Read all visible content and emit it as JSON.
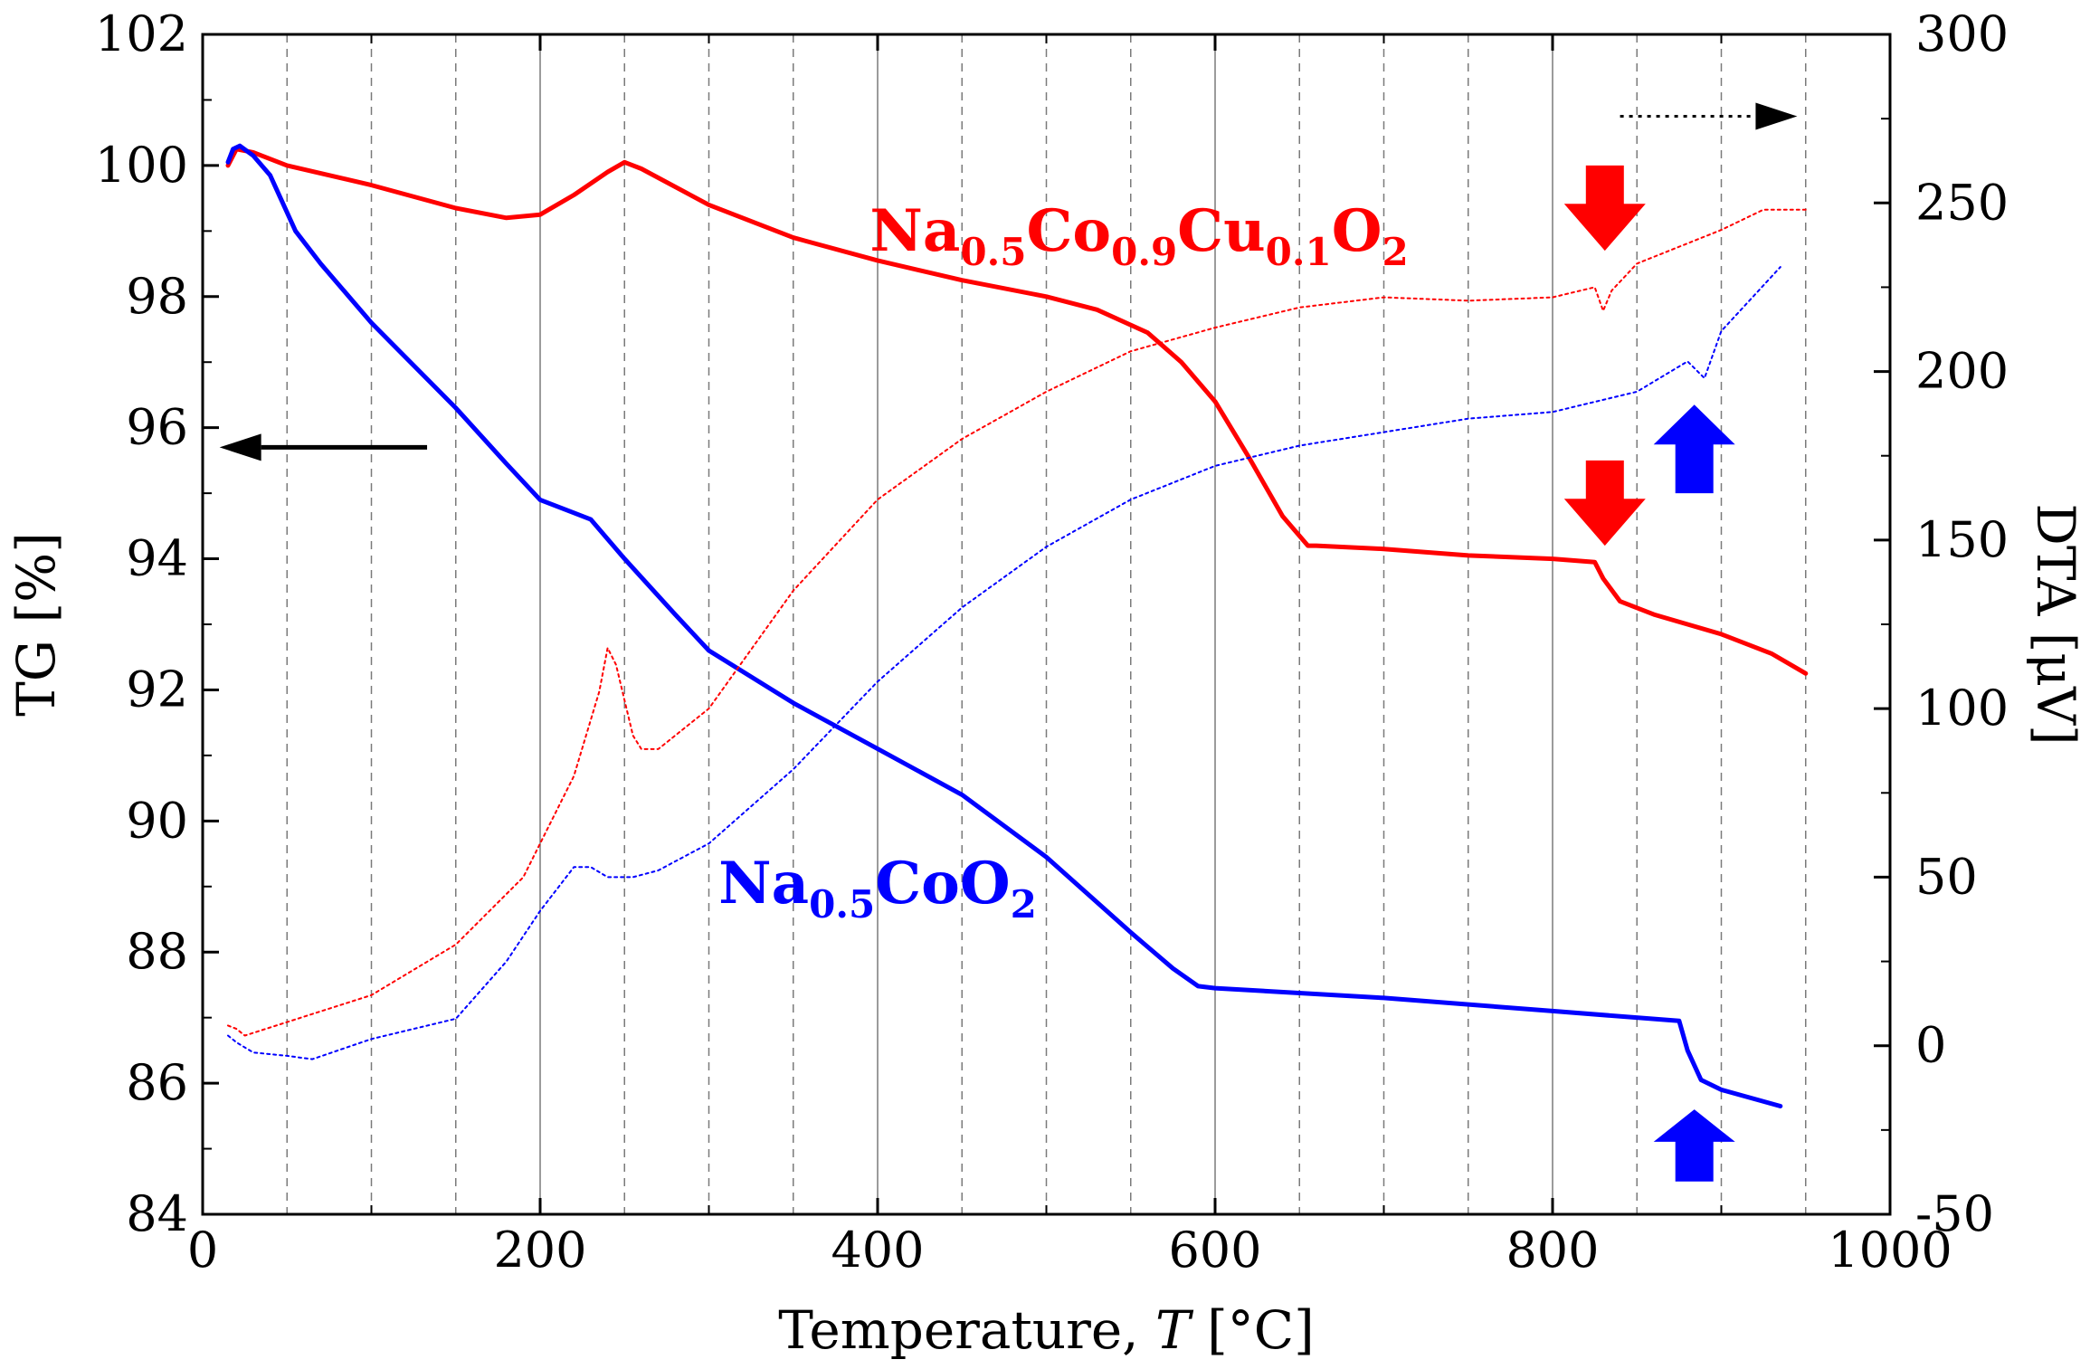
{
  "chart_data": {
    "type": "line",
    "x_axis": {
      "label_prefix": "Temperature, ",
      "label_var": "T",
      "label_unit": " [°C]",
      "range": [
        0,
        1000
      ],
      "ticks": [
        "0",
        "200",
        "400",
        "600",
        "800",
        "1000"
      ],
      "tick_values": [
        0,
        200,
        400,
        600,
        800,
        1000
      ]
    },
    "y_left": {
      "label": "TG [%]",
      "range": [
        84,
        102
      ],
      "ticks": [
        "84",
        "86",
        "88",
        "90",
        "92",
        "94",
        "96",
        "98",
        "100",
        "102"
      ],
      "tick_values": [
        84,
        86,
        88,
        90,
        92,
        94,
        96,
        98,
        100,
        102
      ]
    },
    "y_right": {
      "label": "DTA [μV]",
      "range": [
        -50,
        300
      ],
      "ticks": [
        "-50",
        "0",
        "50",
        "100",
        "150",
        "200",
        "250",
        "300"
      ],
      "tick_values": [
        -50,
        0,
        50,
        100,
        150,
        200,
        250,
        300
      ]
    },
    "grid": {
      "solid_x": [
        200,
        400,
        600,
        800
      ],
      "dashed_x": [
        50,
        100,
        150,
        250,
        300,
        350,
        450,
        500,
        550,
        650,
        700,
        750,
        850,
        900,
        950
      ]
    },
    "series": [
      {
        "name": "Na0.5Co0.9Cu0.1O2 TG",
        "axis": "left",
        "style": "solid",
        "color": "#ff0000",
        "x": [
          15,
          20,
          30,
          50,
          100,
          150,
          180,
          200,
          220,
          240,
          250,
          260,
          300,
          350,
          400,
          450,
          500,
          530,
          560,
          580,
          600,
          620,
          640,
          655,
          660,
          700,
          750,
          800,
          825,
          830,
          840,
          860,
          900,
          930,
          950
        ],
        "y": [
          100.0,
          100.25,
          100.2,
          100.0,
          99.7,
          99.35,
          99.2,
          99.25,
          99.55,
          99.9,
          100.05,
          99.95,
          99.4,
          98.9,
          98.55,
          98.25,
          98.0,
          97.8,
          97.45,
          97.0,
          96.4,
          95.55,
          94.65,
          94.2,
          94.2,
          94.15,
          94.05,
          94.0,
          93.95,
          93.7,
          93.35,
          93.15,
          92.85,
          92.55,
          92.25
        ]
      },
      {
        "name": "Na0.5CoO2 TG",
        "axis": "left",
        "style": "solid",
        "color": "#0000ff",
        "x": [
          15,
          18,
          22,
          30,
          40,
          55,
          70,
          100,
          150,
          180,
          200,
          220,
          230,
          250,
          280,
          300,
          350,
          400,
          450,
          500,
          550,
          575,
          590,
          600,
          700,
          800,
          875,
          880,
          888,
          900,
          935
        ],
        "y": [
          100.05,
          100.25,
          100.3,
          100.15,
          99.85,
          99.0,
          98.5,
          97.6,
          96.3,
          95.45,
          94.9,
          94.7,
          94.6,
          94.0,
          93.15,
          92.6,
          91.8,
          91.1,
          90.4,
          89.45,
          88.3,
          87.75,
          87.48,
          87.45,
          87.3,
          87.1,
          86.95,
          86.5,
          86.05,
          85.9,
          85.65
        ]
      },
      {
        "name": "Na0.5Co0.9Cu0.1O2 DTA",
        "axis": "right",
        "style": "dotted",
        "color": "#ff0000",
        "x": [
          15,
          20,
          25,
          50,
          100,
          150,
          190,
          200,
          220,
          235,
          240,
          245,
          255,
          260,
          270,
          300,
          350,
          400,
          450,
          500,
          550,
          600,
          650,
          700,
          750,
          800,
          825,
          830,
          835,
          850,
          900,
          925,
          950
        ],
        "y": [
          6,
          5,
          3,
          7,
          15,
          30,
          50,
          60,
          80,
          105,
          118,
          113,
          92,
          88,
          88,
          100,
          135,
          162,
          180,
          194,
          206,
          213,
          219,
          222,
          221,
          222,
          225,
          218,
          224,
          232,
          242,
          248,
          248
        ]
      },
      {
        "name": "Na0.5CoO2 DTA",
        "axis": "right",
        "style": "dotted",
        "color": "#0000ff",
        "x": [
          15,
          20,
          30,
          50,
          65,
          100,
          150,
          180,
          200,
          220,
          230,
          240,
          255,
          270,
          300,
          350,
          400,
          450,
          500,
          550,
          600,
          650,
          700,
          750,
          800,
          850,
          870,
          880,
          890,
          900,
          935
        ],
        "y": [
          3,
          1,
          -2,
          -3,
          -4,
          2,
          8,
          25,
          40,
          53,
          53,
          50,
          50,
          52,
          60,
          82,
          108,
          130,
          148,
          162,
          172,
          178,
          182,
          186,
          188,
          194,
          200,
          203,
          198,
          212,
          231
        ]
      }
    ],
    "annotations": {
      "label_cu": {
        "text": [
          {
            "t": "Na"
          },
          {
            "t": "0.5",
            "sub": true
          },
          {
            "t": "Co"
          },
          {
            "t": "0.9",
            "sub": true
          },
          {
            "t": "Cu"
          },
          {
            "t": "0.1",
            "sub": true
          },
          {
            "t": "O"
          },
          {
            "t": "2",
            "sub": true
          }
        ],
        "color": "#ff0000",
        "x": 555,
        "y": 98.7
      },
      "label_co": {
        "text": [
          {
            "t": "Na"
          },
          {
            "t": "0.5",
            "sub": true
          },
          {
            "t": "CoO"
          },
          {
            "t": "2",
            "sub": true
          }
        ],
        "color": "#0000ff",
        "x": 400,
        "y": 88.75
      },
      "arrows": [
        {
          "kind": "horizontal",
          "direction": "left",
          "style": "solid",
          "color": "#000000",
          "x_from": 133,
          "x_to": 10,
          "y_axis": "left",
          "y": 95.7
        },
        {
          "kind": "horizontal",
          "direction": "right",
          "style": "dotted",
          "color": "#000000",
          "x_from": 840,
          "x_to": 945,
          "y_axis": "left",
          "y": 100.75
        },
        {
          "kind": "block",
          "direction": "down",
          "color": "#ff0000",
          "x": 831,
          "y_axis": "left",
          "y_top": 100.0,
          "y_bottom": 98.7
        },
        {
          "kind": "block",
          "direction": "down",
          "color": "#ff0000",
          "x": 831,
          "y_axis": "left",
          "y_top": 95.5,
          "y_bottom": 94.2
        },
        {
          "kind": "block",
          "direction": "up",
          "color": "#0000ff",
          "x": 884,
          "y_axis": "left",
          "y_top": 96.35,
          "y_bottom": 95.0
        },
        {
          "kind": "block",
          "direction": "up",
          "color": "#0000ff",
          "x": 884,
          "y_axis": "left",
          "y_top": 85.6,
          "y_bottom": 84.5
        }
      ]
    }
  }
}
